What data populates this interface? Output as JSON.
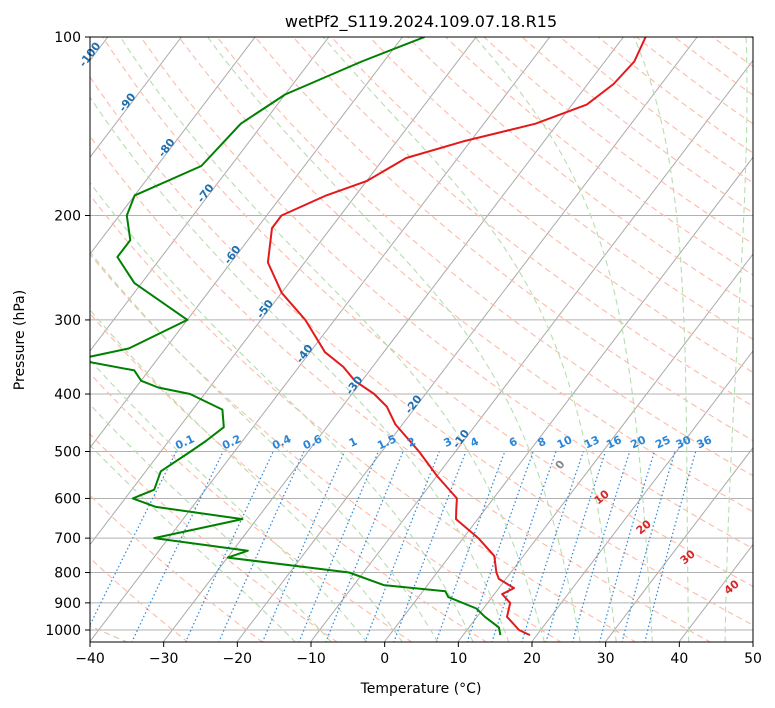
{
  "chart_data": {
    "type": "skew-t",
    "title": "wetPf2_S119.2024.109.07.18.R15",
    "xlabel": "Temperature (°C)",
    "ylabel": "Pressure (hPa)",
    "xlim": [
      -40,
      50
    ],
    "ylim_pressure": [
      1050,
      100
    ],
    "x_ticks": [
      "−40",
      "−30",
      "−20",
      "−10",
      "0",
      "10",
      "20",
      "30",
      "40",
      "50"
    ],
    "x_tick_values": [
      -40,
      -30,
      -20,
      -10,
      0,
      10,
      20,
      30,
      40,
      50
    ],
    "y_ticks": [
      "100",
      "200",
      "300",
      "400",
      "500",
      "600",
      "700",
      "800",
      "900",
      "1000"
    ],
    "y_tick_values": [
      100,
      200,
      300,
      400,
      500,
      600,
      700,
      800,
      900,
      1000
    ],
    "grid": true,
    "colors": {
      "temperature": "#e31a1c",
      "dewpoint": "#008000",
      "isotherm": "#aaaaaa",
      "dry_adiabat": "#fdbba8",
      "moist_adiabat": "#b7ddb0",
      "mixing_ratio": "#2a86d8",
      "isotherm_label": "#1f6fb0",
      "adiabat_label": "#d62728",
      "freezing_label": "#888888"
    },
    "isotherm_labels": [
      "-100",
      "-90",
      "-80",
      "-70",
      "-60",
      "-50",
      "-40",
      "-30",
      "-20",
      "-10"
    ],
    "isotherm_label_values": [
      -100,
      -90,
      -80,
      -70,
      -60,
      -50,
      -40,
      -30,
      -20,
      -10
    ],
    "freezing_label": "0",
    "dry_adiabat_labels": [
      "10",
      "20",
      "30",
      "40"
    ],
    "mixing_ratio_labels": [
      "0.1",
      "0.2",
      "0.4",
      "0.6",
      "1",
      "1.5",
      "2",
      "3",
      "4",
      "6",
      "8",
      "10",
      "13",
      "16",
      "20",
      "25",
      "30",
      "36"
    ],
    "series": [
      {
        "name": "",
        "role": "temperature",
        "points": [
          [
            100,
            -27
          ],
          [
            110,
            -26
          ],
          [
            120,
            -26.5
          ],
          [
            130,
            -28
          ],
          [
            140,
            -33
          ],
          [
            150,
            -41
          ],
          [
            160,
            -47
          ],
          [
            175,
            -50
          ],
          [
            185,
            -54
          ],
          [
            200,
            -58
          ],
          [
            210,
            -58
          ],
          [
            240,
            -55
          ],
          [
            270,
            -50
          ],
          [
            300,
            -44
          ],
          [
            340,
            -38
          ],
          [
            360,
            -34
          ],
          [
            380,
            -31
          ],
          [
            400,
            -27
          ],
          [
            420,
            -24
          ],
          [
            450,
            -21
          ],
          [
            500,
            -15
          ],
          [
            550,
            -10
          ],
          [
            600,
            -5
          ],
          [
            625,
            -4
          ],
          [
            650,
            -3
          ],
          [
            700,
            2
          ],
          [
            750,
            6
          ],
          [
            800,
            8
          ],
          [
            820,
            9
          ],
          [
            850,
            12
          ],
          [
            870,
            11
          ],
          [
            900,
            13
          ],
          [
            950,
            14
          ],
          [
            1000,
            17
          ],
          [
            1020,
            19
          ]
        ]
      },
      {
        "name": "",
        "role": "dewpoint",
        "points": [
          [
            100,
            -57
          ],
          [
            110,
            -63
          ],
          [
            125,
            -70
          ],
          [
            140,
            -73
          ],
          [
            165,
            -74
          ],
          [
            185,
            -80
          ],
          [
            200,
            -79
          ],
          [
            220,
            -76
          ],
          [
            235,
            -76
          ],
          [
            260,
            -71
          ],
          [
            300,
            -60
          ],
          [
            335,
            -65
          ],
          [
            350,
            -71
          ],
          [
            365,
            -62
          ],
          [
            380,
            -60
          ],
          [
            390,
            -57
          ],
          [
            400,
            -52
          ],
          [
            425,
            -46
          ],
          [
            455,
            -44
          ],
          [
            480,
            -45
          ],
          [
            500,
            -46
          ],
          [
            540,
            -48
          ],
          [
            580,
            -47
          ],
          [
            600,
            -49
          ],
          [
            620,
            -45
          ],
          [
            650,
            -32
          ],
          [
            700,
            -42
          ],
          [
            735,
            -28
          ],
          [
            755,
            -30
          ],
          [
            800,
            -12
          ],
          [
            840,
            -6
          ],
          [
            860,
            3
          ],
          [
            880,
            4
          ],
          [
            920,
            9
          ],
          [
            950,
            11
          ],
          [
            990,
            14
          ],
          [
            1020,
            15
          ]
        ]
      }
    ]
  }
}
